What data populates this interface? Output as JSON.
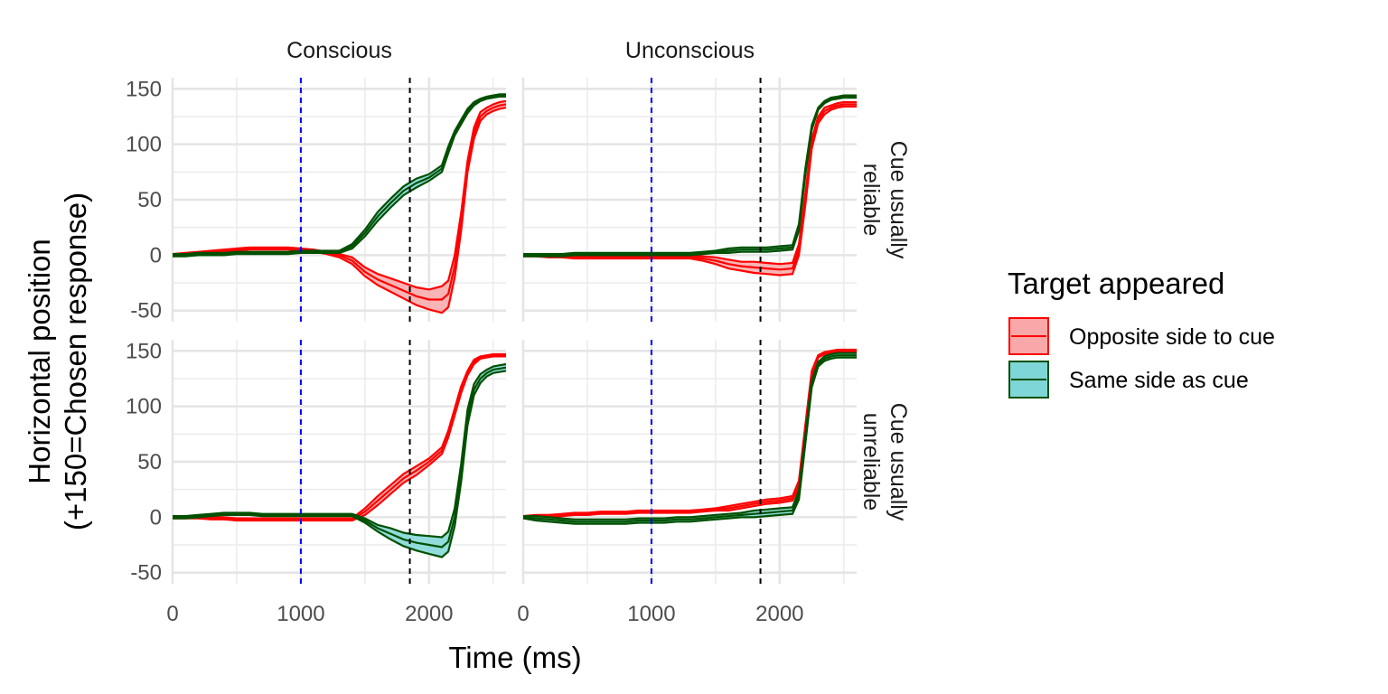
{
  "chart_data": {
    "type": "line",
    "xlabel": "Time (ms)",
    "ylabel_line1": "Horizontal position",
    "ylabel_line2": "(+150=Chosen response)",
    "xlim": [
      0,
      2600
    ],
    "ylim": [
      -60,
      160
    ],
    "x_ticks": [
      0,
      1000,
      2000
    ],
    "y_ticks": [
      150,
      100,
      50,
      0,
      -50
    ],
    "x_tick_labels": [
      "0",
      "1000",
      "2000"
    ],
    "y_tick_labels": [
      "150",
      "100",
      "50",
      "0",
      "-50"
    ],
    "columns": [
      "Conscious",
      "Unconscious"
    ],
    "rows": [
      "Cue usually reliable",
      "Cue usually unreliable"
    ],
    "row_label_lines": [
      [
        "Cue usually",
        "reliable"
      ],
      [
        "Cue usually",
        "unreliable"
      ]
    ],
    "vlines": [
      {
        "x": 1000,
        "color": "#0000ff"
      },
      {
        "x": 1850,
        "color": "#000000"
      }
    ],
    "grid": true,
    "legend": {
      "title": "Target appeared",
      "position": "right",
      "entries": [
        {
          "label": "Opposite side to cue",
          "line_color": "#ff0000",
          "fill_color": "#f8a8a8"
        },
        {
          "label": "Same side as cue",
          "line_color": "#005000",
          "fill_color": "#7fd6d6"
        }
      ]
    },
    "x": [
      0,
      100,
      200,
      300,
      400,
      500,
      600,
      700,
      800,
      900,
      1000,
      1100,
      1200,
      1300,
      1400,
      1500,
      1600,
      1700,
      1800,
      1900,
      2000,
      2100,
      2150,
      2200,
      2250,
      2300,
      2350,
      2400,
      2450,
      2500,
      2550,
      2600
    ],
    "panels": [
      {
        "column": "Conscious",
        "row": "Cue usually reliable",
        "series": [
          {
            "name": "Opposite side to cue",
            "mean": [
              0,
              1,
              2,
              3,
              4,
              5,
              6,
              6,
              6,
              6,
              5,
              4,
              2,
              0,
              -5,
              -15,
              -22,
              -27,
              -32,
              -37,
              -40,
              -40,
              -35,
              -10,
              30,
              80,
              110,
              125,
              130,
              133,
              135,
              136
            ],
            "lower": [
              -1,
              0,
              1,
              2,
              3,
              4,
              5,
              5,
              5,
              5,
              4,
              3,
              1,
              -2,
              -8,
              -19,
              -27,
              -33,
              -39,
              -45,
              -49,
              -52,
              -47,
              -20,
              22,
              75,
              105,
              121,
              127,
              130,
              132,
              133
            ],
            "upper": [
              1,
              2,
              3,
              4,
              5,
              6,
              7,
              7,
              7,
              7,
              6,
              5,
              3,
              1,
              -2,
              -11,
              -17,
              -21,
              -25,
              -29,
              -31,
              -28,
              -23,
              0,
              38,
              85,
              115,
              129,
              133,
              136,
              138,
              139
            ]
          },
          {
            "name": "Same side as cue",
            "mean": [
              0,
              0,
              1,
              1,
              1,
              2,
              2,
              2,
              2,
              2,
              3,
              3,
              3,
              3,
              8,
              20,
              35,
              47,
              58,
              65,
              70,
              78,
              95,
              110,
              120,
              130,
              136,
              140,
              142,
              143,
              144,
              144
            ],
            "lower": [
              -1,
              -1,
              0,
              0,
              0,
              1,
              1,
              1,
              1,
              1,
              2,
              2,
              2,
              2,
              6,
              17,
              31,
              43,
              54,
              61,
              67,
              75,
              92,
              108,
              118,
              128,
              135,
              139,
              141,
              142,
              143,
              143
            ],
            "upper": [
              1,
              1,
              2,
              2,
              2,
              3,
              3,
              3,
              3,
              3,
              4,
              4,
              4,
              4,
              10,
              23,
              39,
              51,
              62,
              69,
              73,
              81,
              98,
              112,
              122,
              132,
              138,
              141,
              143,
              144,
              145,
              145
            ]
          }
        ]
      },
      {
        "column": "Unconscious",
        "row": "Cue usually reliable",
        "series": [
          {
            "name": "Opposite side to cue",
            "mean": [
              0,
              0,
              -1,
              -1,
              -2,
              -2,
              -2,
              -2,
              -2,
              -2,
              -2,
              -2,
              -2,
              -2,
              -3,
              -5,
              -8,
              -10,
              -11,
              -12,
              -13,
              -12,
              5,
              50,
              100,
              122,
              130,
              133,
              135,
              136,
              136,
              136
            ],
            "lower": [
              -1,
              -1,
              -2,
              -2,
              -3,
              -3,
              -3,
              -3,
              -3,
              -3,
              -3,
              -3,
              -3,
              -3,
              -5,
              -8,
              -12,
              -14,
              -16,
              -17,
              -18,
              -17,
              0,
              45,
              96,
              119,
              127,
              131,
              133,
              134,
              134,
              134
            ],
            "upper": [
              1,
              1,
              0,
              0,
              -1,
              -1,
              -1,
              -1,
              -1,
              -1,
              -1,
              -1,
              -1,
              -1,
              -1,
              -2,
              -4,
              -6,
              -6,
              -7,
              -8,
              -7,
              10,
              55,
              104,
              125,
              133,
              135,
              137,
              138,
              138,
              138
            ]
          },
          {
            "name": "Same side as cue",
            "mean": [
              0,
              0,
              0,
              0,
              1,
              1,
              1,
              1,
              1,
              1,
              1,
              1,
              1,
              1,
              2,
              3,
              4,
              5,
              5,
              5,
              6,
              7,
              25,
              75,
              115,
              132,
              138,
              141,
              142,
              143,
              143,
              143
            ],
            "lower": [
              -1,
              -1,
              -1,
              -1,
              0,
              0,
              0,
              0,
              0,
              0,
              0,
              0,
              0,
              0,
              1,
              2,
              2,
              3,
              3,
              3,
              4,
              5,
              22,
              72,
              113,
              131,
              137,
              140,
              141,
              142,
              142,
              142
            ],
            "upper": [
              1,
              1,
              1,
              1,
              2,
              2,
              2,
              2,
              2,
              2,
              2,
              2,
              2,
              2,
              3,
              4,
              6,
              7,
              7,
              7,
              8,
              9,
              28,
              78,
              117,
              133,
              139,
              142,
              143,
              144,
              144,
              144
            ]
          }
        ]
      },
      {
        "column": "Conscious",
        "row": "Cue usually unreliable",
        "series": [
          {
            "name": "Opposite side to cue",
            "mean": [
              0,
              0,
              0,
              -1,
              -1,
              -2,
              -2,
              -2,
              -2,
              -2,
              -2,
              -2,
              -2,
              -2,
              -2,
              5,
              15,
              25,
              35,
              42,
              50,
              60,
              75,
              95,
              115,
              130,
              140,
              144,
              145,
              146,
              146,
              146
            ],
            "lower": [
              -1,
              -1,
              -1,
              -2,
              -2,
              -3,
              -3,
              -3,
              -3,
              -3,
              -3,
              -3,
              -3,
              -3,
              -3,
              2,
              11,
              21,
              31,
              38,
              47,
              57,
              72,
              92,
              112,
              128,
              138,
              143,
              144,
              145,
              145,
              145
            ],
            "upper": [
              1,
              1,
              1,
              0,
              0,
              -1,
              -1,
              -1,
              -1,
              -1,
              -1,
              -1,
              -1,
              -1,
              -1,
              8,
              19,
              29,
              39,
              46,
              53,
              63,
              78,
              98,
              118,
              132,
              142,
              145,
              146,
              147,
              147,
              147
            ]
          },
          {
            "name": "Same side as cue",
            "mean": [
              0,
              0,
              1,
              2,
              3,
              3,
              3,
              2,
              2,
              2,
              2,
              2,
              2,
              2,
              2,
              -3,
              -10,
              -15,
              -20,
              -23,
              -25,
              -27,
              -22,
              0,
              40,
              90,
              115,
              125,
              130,
              133,
              134,
              135
            ],
            "lower": [
              -1,
              -1,
              0,
              1,
              2,
              2,
              2,
              1,
              1,
              1,
              1,
              1,
              1,
              1,
              1,
              -5,
              -13,
              -20,
              -26,
              -30,
              -33,
              -36,
              -31,
              -8,
              32,
              83,
              110,
              121,
              127,
              130,
              131,
              132
            ],
            "upper": [
              1,
              1,
              2,
              3,
              4,
              4,
              4,
              3,
              3,
              3,
              3,
              3,
              3,
              3,
              3,
              -1,
              -7,
              -10,
              -14,
              -16,
              -17,
              -18,
              -13,
              8,
              48,
              97,
              120,
              129,
              133,
              136,
              137,
              138
            ]
          }
        ]
      },
      {
        "column": "Unconscious",
        "row": "Cue usually unreliable",
        "series": [
          {
            "name": "Opposite side to cue",
            "mean": [
              0,
              1,
              1,
              2,
              3,
              3,
              4,
              4,
              4,
              5,
              5,
              5,
              5,
              5,
              6,
              7,
              8,
              10,
              12,
              14,
              15,
              17,
              30,
              80,
              130,
              145,
              148,
              149,
              150,
              150,
              150,
              150
            ],
            "lower": [
              -1,
              0,
              0,
              1,
              2,
              2,
              3,
              3,
              3,
              4,
              4,
              4,
              4,
              4,
              5,
              6,
              6,
              8,
              10,
              12,
              13,
              15,
              27,
              77,
              128,
              144,
              147,
              148,
              149,
              149,
              149,
              149
            ],
            "upper": [
              1,
              2,
              2,
              3,
              4,
              4,
              5,
              5,
              5,
              6,
              6,
              6,
              6,
              6,
              7,
              8,
              10,
              12,
              14,
              16,
              17,
              19,
              33,
              83,
              132,
              146,
              149,
              150,
              151,
              151,
              151,
              151
            ]
          },
          {
            "name": "Same side as cue",
            "mean": [
              0,
              -1,
              -2,
              -3,
              -4,
              -4,
              -4,
              -4,
              -4,
              -3,
              -3,
              -3,
              -2,
              -2,
              -1,
              0,
              1,
              2,
              3,
              4,
              5,
              6,
              20,
              70,
              120,
              138,
              143,
              145,
              146,
              146,
              146,
              146
            ],
            "lower": [
              -1,
              -3,
              -4,
              -5,
              -6,
              -6,
              -6,
              -6,
              -6,
              -5,
              -5,
              -5,
              -4,
              -4,
              -3,
              -2,
              -1,
              0,
              0,
              1,
              2,
              3,
              16,
              66,
              117,
              136,
              141,
              143,
              144,
              144,
              144,
              144
            ],
            "upper": [
              1,
              1,
              0,
              -1,
              -2,
              -2,
              -2,
              -2,
              -2,
              -1,
              -1,
              -1,
              0,
              0,
              1,
              2,
              3,
              4,
              6,
              7,
              8,
              9,
              24,
              74,
              123,
              140,
              145,
              147,
              148,
              148,
              148,
              148
            ]
          }
        ]
      }
    ]
  }
}
